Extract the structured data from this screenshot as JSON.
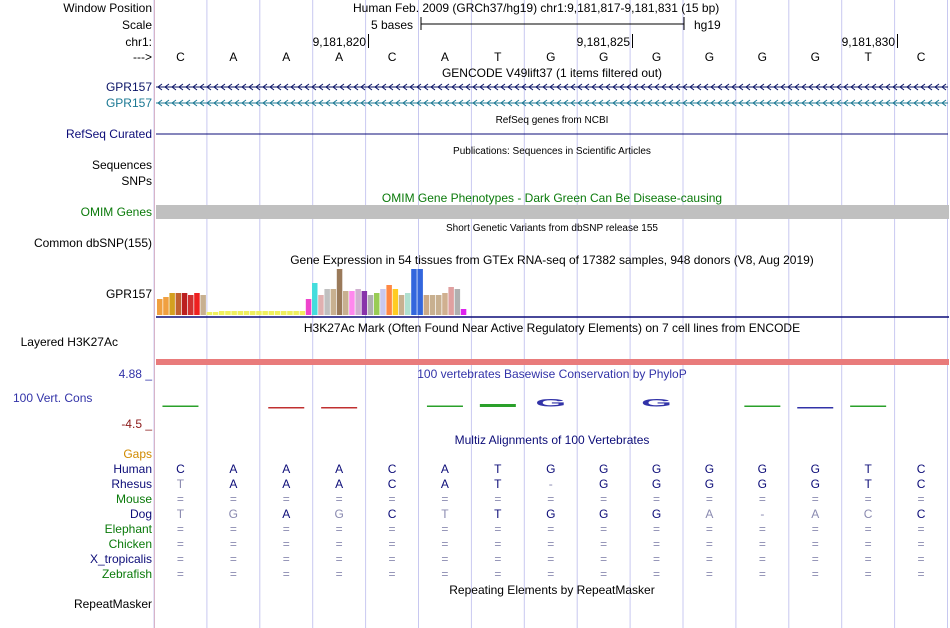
{
  "colors": {
    "gencode_navy": "#0a1366",
    "gencode_teal": "#1b7893",
    "refseq_navy": "#0c0c78",
    "omim_green": "#0a7a0a",
    "omim_bar": "#c0c0c0",
    "guide_line": "#c8c8f0",
    "conservation_blue": "#3233a8",
    "h3k27ac_red": "#e97b7b",
    "gaps_orange": "#d08a00",
    "species_green": "#0a7a0a",
    "species_navy": "#0c0c78",
    "label_red": "#8b1a1a"
  },
  "header": {
    "window_position_label": "Window Position",
    "window_position_value": "Human Feb. 2009 (GRCh37/hg19)   chr1:9,181,817-9,181,831 (15 bp)",
    "scale_label": "Scale",
    "scale_text": "5 bases",
    "assembly": "hg19",
    "chrom_label": "chr1:",
    "strand_label": "--->",
    "coordinates": [
      "9,181,820",
      "9,181,825",
      "9,181,830"
    ],
    "bases": [
      "C",
      "A",
      "A",
      "A",
      "C",
      "A",
      "T",
      "G",
      "G",
      "G",
      "G",
      "G",
      "G",
      "T",
      "C"
    ]
  },
  "tracks": {
    "gencode": {
      "title": "GENCODE V49lift37 (1 items filtered out)",
      "items": [
        "GPR157",
        "GPR157"
      ]
    },
    "refseq": {
      "title": "RefSeq genes from NCBI",
      "label": "RefSeq Curated"
    },
    "publications": {
      "title": "Publications: Sequences in Scientific Articles",
      "label1": "Sequences",
      "label2": "SNPs"
    },
    "omim": {
      "title": "OMIM Gene Phenotypes - Dark Green Can Be Disease-causing",
      "label": "OMIM Genes"
    },
    "dbsnp": {
      "title": "Short Genetic Variants from dbSNP release 155",
      "label": "Common dbSNP(155)"
    },
    "gtex": {
      "title": "Gene Expression in 54 tissues from GTEx RNA-seq of 17382 samples, 948 donors (V8, Aug 2019)",
      "label": "GPR157"
    },
    "h3k27ac": {
      "title": "H3K27Ac Mark (Often Found Near Active Regulatory Elements) on 7 cell lines from ENCODE",
      "label": "Layered H3K27Ac"
    },
    "conservation": {
      "title": "100 vertebrates Basewise Conservation by PhyloP",
      "label": "100 Vert. Cons",
      "y_max": "4.88 _",
      "y_min": "-4.5 _",
      "logo_letters": [
        "G",
        "G"
      ]
    },
    "multiz": {
      "title": "Multiz Alignments of 100 Vertebrates",
      "gaps_label": "Gaps",
      "species": [
        {
          "name": "Human",
          "seq": [
            "C",
            "A",
            "A",
            "A",
            "C",
            "A",
            "T",
            "G",
            "G",
            "G",
            "G",
            "G",
            "G",
            "T",
            "C"
          ]
        },
        {
          "name": "Rhesus",
          "seq": [
            "T",
            "A",
            "A",
            "A",
            "C",
            "A",
            "T",
            "-",
            "G",
            "G",
            "G",
            "G",
            "G",
            "T",
            "C"
          ]
        },
        {
          "name": "Mouse",
          "seq": [
            "=",
            "=",
            "=",
            "=",
            "=",
            "=",
            "=",
            "=",
            "=",
            "=",
            "=",
            "=",
            "=",
            "=",
            "="
          ]
        },
        {
          "name": "Dog",
          "seq": [
            "T",
            "G",
            "A",
            "G",
            "C",
            "T",
            "T",
            "G",
            "G",
            "G",
            "A",
            "-",
            "A",
            "C",
            "C"
          ]
        },
        {
          "name": "Elephant",
          "seq": [
            "=",
            "=",
            "=",
            "=",
            "=",
            "=",
            "=",
            "=",
            "=",
            "=",
            "=",
            "=",
            "=",
            "=",
            "="
          ]
        },
        {
          "name": "Chicken",
          "seq": [
            "=",
            "=",
            "=",
            "=",
            "=",
            "=",
            "=",
            "=",
            "=",
            "=",
            "=",
            "=",
            "=",
            "=",
            "="
          ]
        },
        {
          "name": "X_tropicalis",
          "seq": [
            "=",
            "=",
            "=",
            "=",
            "=",
            "=",
            "=",
            "=",
            "=",
            "=",
            "=",
            "=",
            "=",
            "=",
            "="
          ]
        },
        {
          "name": "Zebrafish",
          "seq": [
            "=",
            "=",
            "=",
            "=",
            "=",
            "=",
            "=",
            "=",
            "=",
            "=",
            "=",
            "=",
            "=",
            "=",
            "="
          ]
        }
      ]
    },
    "repeatmasker": {
      "title": "Repeating Elements by RepeatMasker",
      "label": "RepeatMasker"
    }
  }
}
